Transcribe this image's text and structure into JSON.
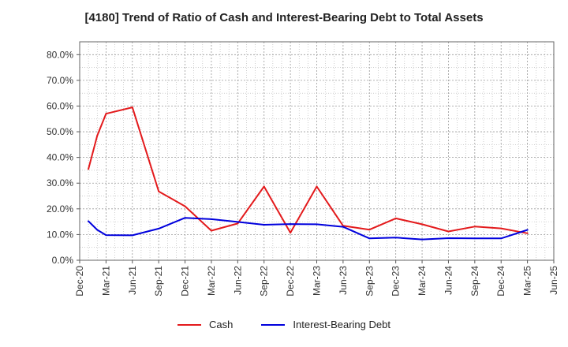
{
  "chart_data": {
    "type": "line",
    "title": "[4180]  Trend of Ratio of Cash and Interest-Bearing Debt to Total Assets",
    "xlabel": "",
    "ylabel": "",
    "x_ticks": [
      "Dec-20",
      "Mar-21",
      "Jun-21",
      "Sep-21",
      "Dec-21",
      "Mar-22",
      "Jun-22",
      "Sep-22",
      "Dec-22",
      "Mar-23",
      "Jun-23",
      "Sep-23",
      "Dec-23",
      "Mar-24",
      "Jun-24",
      "Sep-24",
      "Dec-24",
      "Mar-25",
      "Jun-25"
    ],
    "y_ticks": [
      "0.0%",
      "10.0%",
      "20.0%",
      "30.0%",
      "40.0%",
      "50.0%",
      "60.0%",
      "70.0%",
      "80.0%"
    ],
    "ylim": [
      0,
      85
    ],
    "x_range": [
      "Dec-20",
      "Jun-25"
    ],
    "grid": true,
    "legend_position": "bottom",
    "series": [
      {
        "name": "Cash",
        "color": "#e31a1c",
        "points": [
          {
            "x": "Jan-21",
            "y": 35.5
          },
          {
            "x": "Feb-21",
            "y": 48.5
          },
          {
            "x": "Mar-21",
            "y": 57.0
          },
          {
            "x": "Jun-21",
            "y": 59.5
          },
          {
            "x": "Sep-21",
            "y": 26.8
          },
          {
            "x": "Dec-21",
            "y": 21.0
          },
          {
            "x": "Mar-22",
            "y": 11.5
          },
          {
            "x": "Jun-22",
            "y": 14.3
          },
          {
            "x": "Sep-22",
            "y": 28.7
          },
          {
            "x": "Dec-22",
            "y": 10.7
          },
          {
            "x": "Mar-23",
            "y": 28.7
          },
          {
            "x": "Jun-23",
            "y": 13.4
          },
          {
            "x": "Sep-23",
            "y": 11.9
          },
          {
            "x": "Dec-23",
            "y": 16.3
          },
          {
            "x": "Mar-24",
            "y": 14.0
          },
          {
            "x": "Jun-24",
            "y": 11.2
          },
          {
            "x": "Sep-24",
            "y": 13.1
          },
          {
            "x": "Dec-24",
            "y": 12.4
          },
          {
            "x": "Mar-25",
            "y": 10.5
          }
        ]
      },
      {
        "name": "Interest-Bearing Debt",
        "color": "#0000dd",
        "points": [
          {
            "x": "Jan-21",
            "y": 15.2
          },
          {
            "x": "Feb-21",
            "y": 11.8
          },
          {
            "x": "Mar-21",
            "y": 9.8
          },
          {
            "x": "Jun-21",
            "y": 9.7
          },
          {
            "x": "Sep-21",
            "y": 12.3
          },
          {
            "x": "Dec-21",
            "y": 16.5
          },
          {
            "x": "Mar-22",
            "y": 16.0
          },
          {
            "x": "Jun-22",
            "y": 14.9
          },
          {
            "x": "Sep-22",
            "y": 13.8
          },
          {
            "x": "Dec-22",
            "y": 14.1
          },
          {
            "x": "Mar-23",
            "y": 14.0
          },
          {
            "x": "Jun-23",
            "y": 13.0
          },
          {
            "x": "Sep-23",
            "y": 8.5
          },
          {
            "x": "Dec-23",
            "y": 8.8
          },
          {
            "x": "Mar-24",
            "y": 8.1
          },
          {
            "x": "Jun-24",
            "y": 8.6
          },
          {
            "x": "Sep-24",
            "y": 8.5
          },
          {
            "x": "Dec-24",
            "y": 8.5
          },
          {
            "x": "Mar-25",
            "y": 11.8
          }
        ]
      }
    ]
  }
}
